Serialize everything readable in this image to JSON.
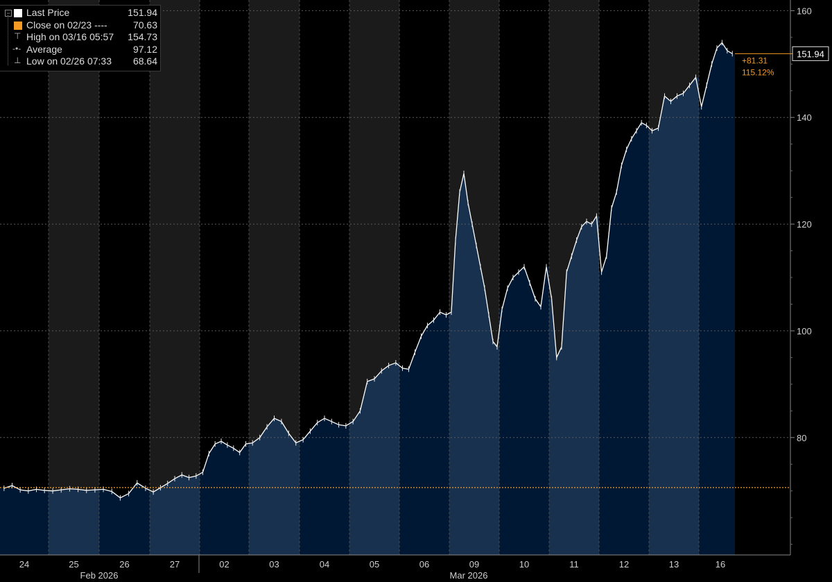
{
  "legend": {
    "items": [
      {
        "label": "Last Price",
        "value": "151.94",
        "symbol": "white-square-icon",
        "color": "#ffffff"
      },
      {
        "label": "Close on 02/23 ----",
        "value": "70.63",
        "symbol": "orange-square-icon",
        "color": "#f59a23"
      },
      {
        "label": "High on 03/16 05:57",
        "value": "154.73",
        "symbol": "high-marker-icon",
        "color": "#bbbbbb"
      },
      {
        "label": "Average",
        "value": "97.12",
        "symbol": "average-marker-icon",
        "color": "#bbbbbb"
      },
      {
        "label": "Low on 02/26 07:33",
        "value": "68.64",
        "symbol": "low-marker-icon",
        "color": "#bbbbbb"
      }
    ]
  },
  "last_price_tag": "151.94",
  "change": {
    "abs": "+81.31",
    "pct": "115.12%"
  },
  "colors": {
    "background": "#000000",
    "band_alt": "#1b1b1b",
    "area_fill": "#001833",
    "area_fill_light": "#18314f",
    "price_line": "#ffffff",
    "close_line": "#f59a23",
    "axis_text": "#cfcfcf"
  },
  "chart_data": {
    "type": "area",
    "title": "",
    "ylim": [
      58,
      162
    ],
    "y_ticks": [
      80,
      100,
      120,
      140,
      160
    ],
    "x_ticks": [
      "24",
      "25",
      "26",
      "27",
      "02",
      "03",
      "04",
      "05",
      "06",
      "09",
      "10",
      "11",
      "12",
      "13",
      "16"
    ],
    "x_month_labels": [
      "Feb 2026",
      "Mar 2026"
    ],
    "reference_close": 70.63,
    "last": 151.94,
    "high": 154.73,
    "average": 97.12,
    "low": 68.64,
    "day_points": [
      [
        70.5,
        71.0,
        70.2,
        70.0,
        70.3,
        70.1
      ],
      [
        70.0,
        70.2,
        70.4,
        70.3,
        70.1,
        70.2
      ],
      [
        70.3,
        69.9,
        68.7,
        69.5,
        71.5,
        70.5
      ],
      [
        69.8,
        70.6,
        71.4,
        72.3,
        73.0,
        72.5,
        72.8
      ],
      [
        73.5,
        77.0,
        78.8,
        79.3,
        78.6,
        78.0,
        77.2,
        78.8
      ],
      [
        79.0,
        80.0,
        82.0,
        83.6,
        83.0,
        80.8,
        79.0
      ],
      [
        79.6,
        81.2,
        82.8,
        83.6,
        83.0,
        82.4,
        82.2
      ],
      [
        83.0,
        85.0,
        90.5,
        91.0,
        92.5,
        93.5,
        94.0
      ],
      [
        93.0,
        92.8,
        96.0,
        99.0,
        101.0,
        102.0,
        103.5,
        103.0
      ],
      [
        103.5,
        117.0,
        126.0,
        129.5,
        124.0,
        120.0,
        116.0,
        112.0,
        108.0,
        103.0,
        98.0,
        97.0
      ],
      [
        104.0,
        108.0,
        110.0,
        111.0,
        112.0,
        109.0,
        106.0,
        104.5,
        112.0
      ],
      [
        106.0,
        95.0,
        97.0,
        111.0,
        114.0,
        117.0,
        119.5,
        120.5,
        120.0,
        121.5
      ],
      [
        111.0,
        114.0,
        123.0,
        126.0,
        131.0,
        134.0,
        136.0,
        137.5,
        139.0,
        138.5
      ],
      [
        137.5,
        138.0,
        144.0,
        143.0,
        144.0,
        144.5,
        146.0,
        147.5
      ],
      [
        142.0,
        146.0,
        150.0,
        153.0,
        154.0,
        152.5,
        151.94
      ]
    ]
  }
}
